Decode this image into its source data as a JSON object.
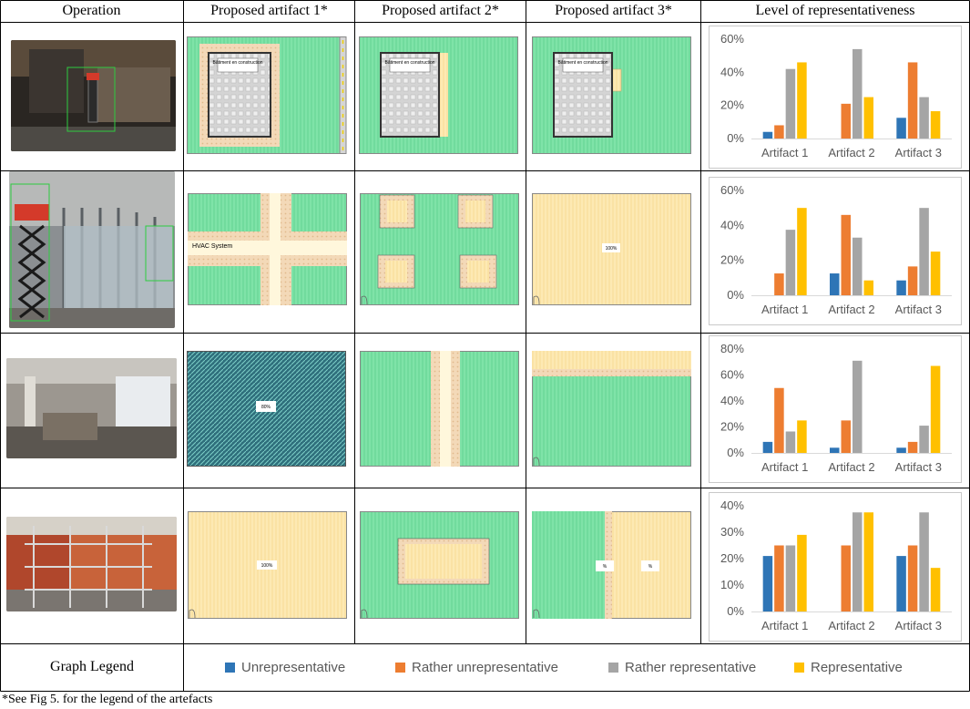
{
  "headers": [
    "Operation",
    "Proposed artifact 1*",
    "Proposed artifact 2*",
    "Proposed artifact 3*",
    "Level of representativeness"
  ],
  "artifact_labels": {
    "row1_a1": "Bâtiment en construction",
    "row1_a2": "Bâtiment en construction",
    "row1_a3": "Bâtiment en construction",
    "row2_a1": "HVAC System",
    "row2_a3": "100%",
    "row3_a1": "80%",
    "row4_a1": "100%",
    "row4_a3_left": "%",
    "row4_a3_right": "%"
  },
  "legend": {
    "title": "Graph Legend",
    "items": [
      {
        "label": "Unrepresentative",
        "color": "#2e75b6"
      },
      {
        "label": "Rather unrepresentative",
        "color": "#ed7d31"
      },
      {
        "label": "Rather representative",
        "color": "#a5a5a5"
      },
      {
        "label": "Representative",
        "color": "#ffc000"
      }
    ]
  },
  "footnote": "*See Fig 5. for the legend of the artefacts",
  "colors": {
    "green": "#7fe3a8",
    "sand": "#fde9b3",
    "gray_building": "#d9d9d9",
    "hatch_blue": "#3c7e8c"
  },
  "chart_data": [
    {
      "type": "bar",
      "categories": [
        "Artifact 1",
        "Artifact 2",
        "Artifact 3"
      ],
      "series": [
        {
          "name": "Unrepresentative",
          "values": [
            4,
            0,
            12.5
          ]
        },
        {
          "name": "Rather unrepresentative",
          "values": [
            8,
            21,
            46
          ]
        },
        {
          "name": "Rather representative",
          "values": [
            42,
            54,
            25
          ]
        },
        {
          "name": "Representative",
          "values": [
            46,
            25,
            16.5
          ]
        }
      ],
      "ylim": [
        0,
        60
      ],
      "yticks": [
        "0%",
        "20%",
        "40%",
        "60%"
      ],
      "grid": false
    },
    {
      "type": "bar",
      "categories": [
        "Artifact 1",
        "Artifact 2",
        "Artifact 3"
      ],
      "series": [
        {
          "name": "Unrepresentative",
          "values": [
            0,
            12.5,
            8.5
          ]
        },
        {
          "name": "Rather unrepresentative",
          "values": [
            12.5,
            46,
            16.5
          ]
        },
        {
          "name": "Rather representative",
          "values": [
            37.5,
            33,
            50
          ]
        },
        {
          "name": "Representative",
          "values": [
            50,
            8.5,
            25
          ]
        }
      ],
      "ylim": [
        0,
        60
      ],
      "yticks": [
        "0%",
        "20%",
        "40%",
        "60%"
      ],
      "grid": false
    },
    {
      "type": "bar",
      "categories": [
        "Artifact 1",
        "Artifact 2",
        "Artifact 3"
      ],
      "series": [
        {
          "name": "Unrepresentative",
          "values": [
            8.5,
            4,
            4
          ]
        },
        {
          "name": "Rather unrepresentative",
          "values": [
            50,
            25,
            8.5
          ]
        },
        {
          "name": "Rather representative",
          "values": [
            16.5,
            71,
            21
          ]
        },
        {
          "name": "Representative",
          "values": [
            25,
            0,
            67
          ]
        }
      ],
      "ylim": [
        0,
        80
      ],
      "yticks": [
        "0%",
        "20%",
        "40%",
        "60%",
        "80%"
      ],
      "grid": false
    },
    {
      "type": "bar",
      "categories": [
        "Artifact 1",
        "Artifact 2",
        "Artifact 3"
      ],
      "series": [
        {
          "name": "Unrepresentative",
          "values": [
            21,
            0,
            21
          ]
        },
        {
          "name": "Rather unrepresentative",
          "values": [
            25,
            25,
            25
          ]
        },
        {
          "name": "Rather representative",
          "values": [
            25,
            37.5,
            37.5
          ]
        },
        {
          "name": "Representative",
          "values": [
            29,
            37.5,
            16.5
          ]
        }
      ],
      "ylim": [
        0,
        40
      ],
      "yticks": [
        "0%",
        "10%",
        "20%",
        "30%",
        "40%"
      ],
      "grid": false
    }
  ]
}
